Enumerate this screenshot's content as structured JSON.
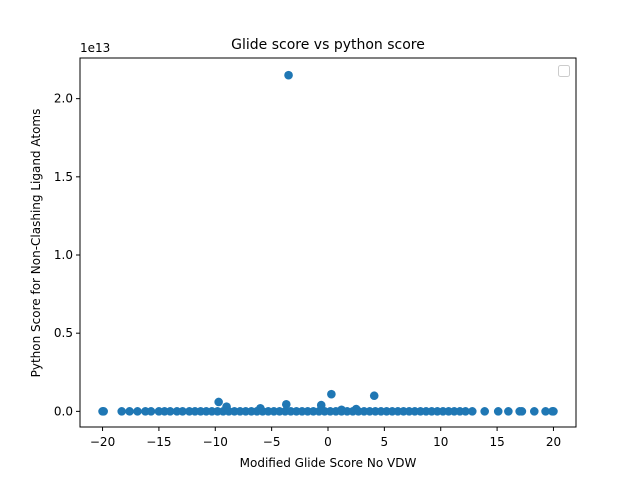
{
  "chart_data": {
    "type": "scatter",
    "title": "Glide score vs python score",
    "xlabel": "Modified Glide Score No VDW",
    "ylabel": "Python Score for Non-Clashing Ligand Atoms",
    "y_offset_label": "1e13",
    "xlim": [
      -22,
      22
    ],
    "ylim": [
      -0.1,
      2.26
    ],
    "y_scale_factor": 10000000000000.0,
    "xticks": [
      -20,
      -15,
      -10,
      -5,
      0,
      5,
      10,
      15,
      20
    ],
    "xtick_labels": [
      "−20",
      "−15",
      "−10",
      "−5",
      "0",
      "5",
      "10",
      "15",
      "20"
    ],
    "yticks": [
      0.0,
      0.5,
      1.0,
      1.5,
      2.0
    ],
    "ytick_labels": [
      "0.0",
      "0.5",
      "1.0",
      "1.5",
      "2.0"
    ],
    "grid": false,
    "legend": {
      "placement": "top-right",
      "entries": []
    },
    "point_color": "#1f77b4",
    "series": [
      {
        "points": [
          [
            -3.5,
            2.15
          ],
          [
            0.3,
            0.11
          ],
          [
            4.1,
            0.1
          ],
          [
            -9.7,
            0.06
          ],
          [
            -9.0,
            0.03
          ],
          [
            -3.7,
            0.045
          ],
          [
            -0.6,
            0.04
          ],
          [
            -6.0,
            0.02
          ],
          [
            2.5,
            0.015
          ],
          [
            1.2,
            0.01
          ],
          [
            -20.0,
            0.0
          ],
          [
            -19.9,
            0.0
          ],
          [
            -18.3,
            0.0
          ],
          [
            -17.6,
            0.0
          ],
          [
            -16.9,
            0.0
          ],
          [
            -16.2,
            0.0
          ],
          [
            -15.7,
            0.0
          ],
          [
            -15.0,
            0.0
          ],
          [
            -14.5,
            0.0
          ],
          [
            -14.0,
            0.0
          ],
          [
            -13.4,
            0.0
          ],
          [
            -12.9,
            0.0
          ],
          [
            -12.3,
            0.0
          ],
          [
            -11.8,
            0.0
          ],
          [
            -11.3,
            0.0
          ],
          [
            -10.8,
            0.0
          ],
          [
            -10.3,
            0.0
          ],
          [
            -9.8,
            0.0
          ],
          [
            -9.3,
            0.0
          ],
          [
            -8.8,
            0.0
          ],
          [
            -8.3,
            0.0
          ],
          [
            -7.8,
            0.0
          ],
          [
            -7.3,
            0.0
          ],
          [
            -6.8,
            0.0
          ],
          [
            -6.3,
            0.0
          ],
          [
            -5.8,
            0.0
          ],
          [
            -5.3,
            0.0
          ],
          [
            -4.8,
            0.0
          ],
          [
            -4.3,
            0.0
          ],
          [
            -3.8,
            0.0
          ],
          [
            -3.3,
            0.0
          ],
          [
            -2.8,
            0.0
          ],
          [
            -2.3,
            0.0
          ],
          [
            -1.8,
            0.0
          ],
          [
            -1.3,
            0.0
          ],
          [
            -0.8,
            0.0
          ],
          [
            -0.3,
            0.0
          ],
          [
            0.2,
            0.0
          ],
          [
            0.7,
            0.0
          ],
          [
            1.2,
            0.0
          ],
          [
            1.7,
            0.0
          ],
          [
            2.2,
            0.0
          ],
          [
            2.7,
            0.0
          ],
          [
            3.2,
            0.0
          ],
          [
            3.7,
            0.0
          ],
          [
            4.2,
            0.0
          ],
          [
            4.7,
            0.0
          ],
          [
            5.2,
            0.0
          ],
          [
            5.7,
            0.0
          ],
          [
            6.2,
            0.0
          ],
          [
            6.7,
            0.0
          ],
          [
            7.2,
            0.0
          ],
          [
            7.7,
            0.0
          ],
          [
            8.2,
            0.0
          ],
          [
            8.7,
            0.0
          ],
          [
            9.2,
            0.0
          ],
          [
            9.7,
            0.0
          ],
          [
            10.2,
            0.0
          ],
          [
            10.7,
            0.0
          ],
          [
            11.2,
            0.0
          ],
          [
            11.7,
            0.0
          ],
          [
            12.2,
            0.0
          ],
          [
            12.8,
            0.0
          ],
          [
            13.9,
            0.0
          ],
          [
            15.1,
            0.0
          ],
          [
            16.0,
            0.0
          ],
          [
            17.0,
            0.0
          ],
          [
            17.2,
            0.0
          ],
          [
            18.3,
            0.0
          ],
          [
            19.3,
            0.0
          ],
          [
            19.9,
            0.0
          ],
          [
            20.0,
            0.0
          ]
        ]
      }
    ]
  }
}
